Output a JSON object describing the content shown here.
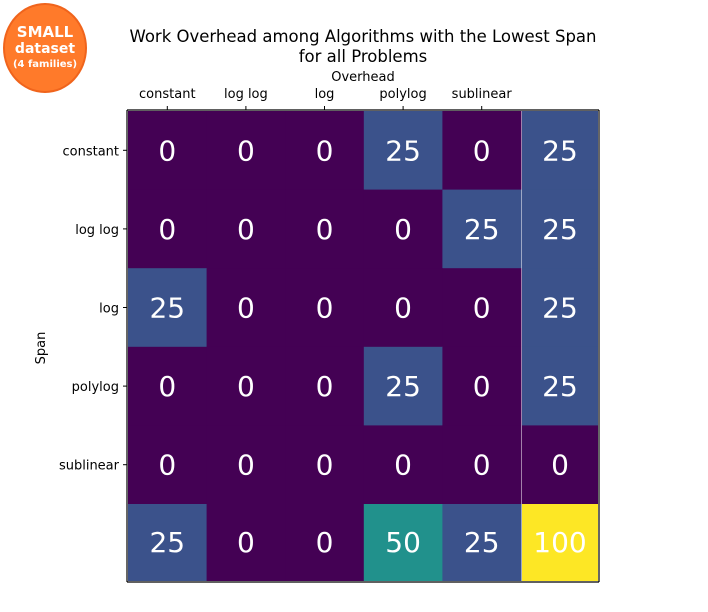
{
  "badge": {
    "line1": "SMALL",
    "line2": "dataset",
    "line3": "(4 families)",
    "color": "#ff7a2a"
  },
  "chart_data": {
    "type": "heatmap",
    "title": "Work Overhead among Algorithms with the Lowest Span\nfor all Problems",
    "xlabel": "Overhead",
    "ylabel": "Span",
    "x_categories": [
      "constant",
      "log log",
      "log",
      "polylog",
      "sublinear"
    ],
    "y_categories": [
      "constant",
      "log log",
      "log",
      "polylog",
      "sublinear"
    ],
    "values": [
      [
        0,
        0,
        0,
        25,
        0
      ],
      [
        0,
        0,
        0,
        0,
        25
      ],
      [
        25,
        0,
        0,
        0,
        0
      ],
      [
        0,
        0,
        0,
        25,
        0
      ],
      [
        0,
        0,
        0,
        0,
        0
      ]
    ],
    "row_totals": [
      25,
      25,
      25,
      25,
      0
    ],
    "column_totals": [
      25,
      0,
      0,
      50,
      25
    ],
    "grand_total": 100,
    "colormap": "viridis",
    "color_range": [
      0,
      100
    ],
    "colors": {
      "0": "#440154",
      "25": "#3b528b",
      "50": "#21918c",
      "100": "#fde725"
    }
  }
}
